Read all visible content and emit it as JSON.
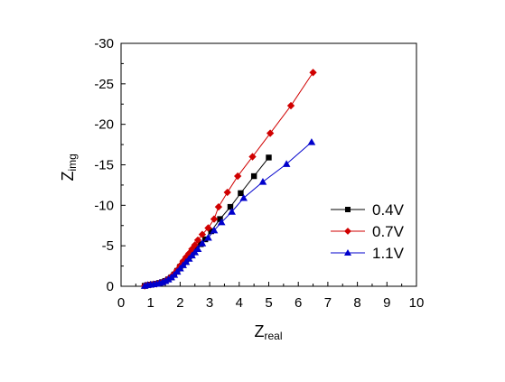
{
  "chart_data": {
    "type": "scatter",
    "title": "",
    "xlabel": {
      "main": "Z",
      "sub": "real"
    },
    "ylabel": {
      "main": "Z",
      "sub": "img"
    },
    "xlim": [
      0,
      10
    ],
    "ylim": [
      0,
      -30
    ],
    "x_ticks": [
      "0",
      "1",
      "2",
      "3",
      "4",
      "5",
      "6",
      "7",
      "8",
      "9",
      "10"
    ],
    "y_ticks": [
      "0",
      "-5",
      "-10",
      "-15",
      "-20",
      "-25",
      "-30"
    ],
    "grid": false,
    "legend_position": "right",
    "series": [
      {
        "name": "0.4V",
        "color": "#000000",
        "marker": "square",
        "points": [
          [
            0.8,
            -0.05
          ],
          [
            0.9,
            -0.15
          ],
          [
            1.0,
            -0.2
          ],
          [
            1.1,
            -0.25
          ],
          [
            1.2,
            -0.3
          ],
          [
            1.3,
            -0.4
          ],
          [
            1.4,
            -0.5
          ],
          [
            1.5,
            -0.65
          ],
          [
            1.6,
            -0.85
          ],
          [
            1.7,
            -1.1
          ],
          [
            1.8,
            -1.45
          ],
          [
            1.9,
            -1.9
          ],
          [
            2.0,
            -2.4
          ],
          [
            2.1,
            -2.9
          ],
          [
            2.2,
            -3.3
          ],
          [
            2.3,
            -3.7
          ],
          [
            2.4,
            -4.1
          ],
          [
            2.55,
            -4.6
          ],
          [
            2.7,
            -5.2
          ],
          [
            2.85,
            -5.8
          ],
          [
            3.05,
            -6.8
          ],
          [
            3.35,
            -8.3
          ],
          [
            3.7,
            -9.8
          ],
          [
            4.05,
            -11.5
          ],
          [
            4.5,
            -13.6
          ],
          [
            5.0,
            -15.9
          ]
        ]
      },
      {
        "name": "0.7V",
        "color": "#d00000",
        "marker": "diamond",
        "points": [
          [
            0.8,
            -0.05
          ],
          [
            0.9,
            -0.15
          ],
          [
            1.0,
            -0.2
          ],
          [
            1.1,
            -0.25
          ],
          [
            1.2,
            -0.3
          ],
          [
            1.3,
            -0.4
          ],
          [
            1.4,
            -0.5
          ],
          [
            1.5,
            -0.65
          ],
          [
            1.6,
            -0.9
          ],
          [
            1.7,
            -1.2
          ],
          [
            1.8,
            -1.55
          ],
          [
            1.9,
            -2.0
          ],
          [
            2.0,
            -2.55
          ],
          [
            2.1,
            -3.1
          ],
          [
            2.2,
            -3.6
          ],
          [
            2.3,
            -4.05
          ],
          [
            2.4,
            -4.6
          ],
          [
            2.5,
            -5.1
          ],
          [
            2.6,
            -5.7
          ],
          [
            2.75,
            -6.4
          ],
          [
            2.95,
            -7.2
          ],
          [
            3.15,
            -8.3
          ],
          [
            3.3,
            -9.8
          ],
          [
            3.6,
            -11.6
          ],
          [
            3.95,
            -13.6
          ],
          [
            4.45,
            -16.0
          ],
          [
            5.05,
            -18.9
          ],
          [
            5.75,
            -22.3
          ],
          [
            6.5,
            -26.4
          ]
        ]
      },
      {
        "name": "1.1V",
        "color": "#0000cc",
        "marker": "triangle",
        "points": [
          [
            0.8,
            -0.05
          ],
          [
            0.9,
            -0.15
          ],
          [
            1.0,
            -0.2
          ],
          [
            1.1,
            -0.25
          ],
          [
            1.2,
            -0.3
          ],
          [
            1.3,
            -0.4
          ],
          [
            1.4,
            -0.5
          ],
          [
            1.5,
            -0.65
          ],
          [
            1.6,
            -0.85
          ],
          [
            1.7,
            -1.1
          ],
          [
            1.8,
            -1.4
          ],
          [
            1.9,
            -1.8
          ],
          [
            2.0,
            -2.2
          ],
          [
            2.1,
            -2.6
          ],
          [
            2.2,
            -3.0
          ],
          [
            2.3,
            -3.4
          ],
          [
            2.4,
            -3.8
          ],
          [
            2.5,
            -4.2
          ],
          [
            2.6,
            -4.6
          ],
          [
            2.75,
            -5.3
          ],
          [
            2.95,
            -6.0
          ],
          [
            3.15,
            -6.9
          ],
          [
            3.4,
            -7.9
          ],
          [
            3.75,
            -9.2
          ],
          [
            4.15,
            -10.9
          ],
          [
            4.8,
            -12.9
          ],
          [
            5.6,
            -15.1
          ],
          [
            6.45,
            -17.8
          ]
        ]
      }
    ]
  }
}
